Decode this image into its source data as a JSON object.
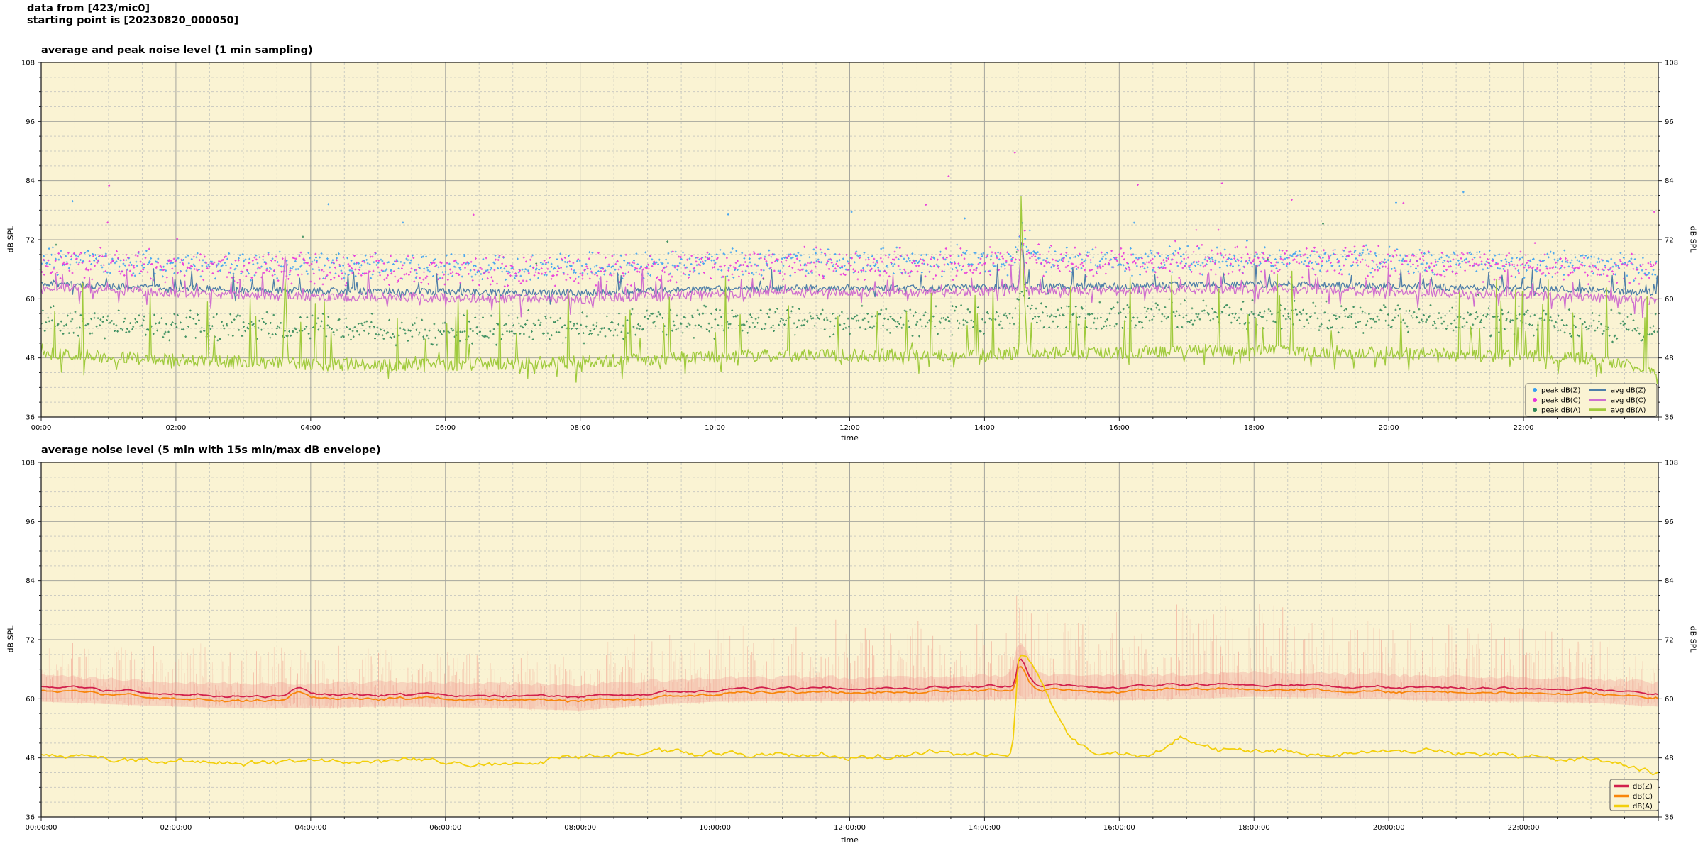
{
  "header": {
    "line1": "data from [423/mic0]",
    "line2": "starting point is [20230820_000050]"
  },
  "colors": {
    "figure_bg": "#ffffff",
    "plot_bg": "#faf3d3",
    "grid_major": "#a6a69e",
    "grid_minor": "#ccccc2",
    "spine": "#222222",
    "envelope": "#ef9384"
  },
  "chart_data": [
    {
      "type": "line+scatter",
      "title": "average and peak noise level (1 min sampling)",
      "xlabel": "time",
      "ylabel_left": "dB SPL",
      "ylabel_right": "dB SPL",
      "ylim": [
        36,
        108
      ],
      "yticks": [
        36,
        48,
        60,
        72,
        84,
        96,
        108
      ],
      "y_minor_step": 3,
      "x_hours": [
        0,
        24
      ],
      "x_major_step_h": 2,
      "x_minor_step_h": 0.5,
      "xtick_labels": [
        "00:00",
        "02:00",
        "04:00",
        "06:00",
        "08:00",
        "10:00",
        "12:00",
        "14:00",
        "16:00",
        "18:00",
        "20:00",
        "22:00"
      ],
      "grid": true,
      "legend_position": "lower right",
      "legend": [
        {
          "label": "peak dB(Z)",
          "marker": "dot",
          "color": "#369ff2"
        },
        {
          "label": "peak dB(C)",
          "marker": "dot",
          "color": "#e832dc"
        },
        {
          "label": "peak dB(A)",
          "marker": "dot",
          "color": "#2e8757"
        },
        {
          "label": "avg dB(Z)",
          "marker": "line",
          "color": "#4e7ea8"
        },
        {
          "label": "avg dB(C)",
          "marker": "line",
          "color": "#cf6ecf"
        },
        {
          "label": "avg dB(A)",
          "marker": "line",
          "color": "#9fca3c"
        }
      ],
      "anchor_hours": [
        0,
        1,
        2,
        3,
        4,
        5,
        6,
        7,
        8,
        9,
        10,
        11,
        12,
        13,
        14,
        15,
        16,
        17,
        18,
        19,
        20,
        21,
        22,
        23,
        24
      ],
      "series": [
        {
          "name": "avg dB(Z)",
          "color": "#4e7ea8",
          "width": 1.3,
          "mode": "spiky",
          "seed": 11,
          "points": 1440,
          "noise": 0.7,
          "spike_prob": 0.035,
          "spike_min": 1.2,
          "spike_max": 4.5,
          "dip_prob": 0.03,
          "dip_max": 2.0,
          "anchors": [
            63.2,
            62.6,
            62.2,
            61.8,
            61.6,
            61.5,
            61.4,
            61.3,
            61.2,
            61.6,
            62.0,
            62.1,
            62.2,
            62.2,
            62.4,
            62.5,
            62.6,
            62.8,
            63.0,
            62.8,
            62.6,
            62.3,
            62.1,
            61.8,
            61.3
          ],
          "events": [
            {
              "t": 14.55,
              "amp": 9.0,
              "rise": 0.02,
              "decay": 0.03
            }
          ]
        },
        {
          "name": "avg dB(C)",
          "color": "#cf6ecf",
          "width": 1.3,
          "mode": "spiky",
          "seed": 12,
          "points": 1440,
          "noise": 0.9,
          "spike_prob": 0.04,
          "spike_min": 1.5,
          "spike_max": 6.0,
          "dip_prob": 0.05,
          "dip_max": 3.0,
          "anchors": [
            62.4,
            61.8,
            61.2,
            60.7,
            60.4,
            60.3,
            60.2,
            60.1,
            59.9,
            60.5,
            61.0,
            61.2,
            61.3,
            61.3,
            61.5,
            61.6,
            61.6,
            61.8,
            62.0,
            61.8,
            61.4,
            61.0,
            60.8,
            60.3,
            59.6
          ],
          "events": [
            {
              "t": 14.55,
              "amp": 9.5,
              "rise": 0.02,
              "decay": 0.03
            },
            {
              "t": 3.62,
              "amp": 9.0,
              "rise": 0.015,
              "decay": 0.02
            }
          ]
        },
        {
          "name": "avg dB(A)",
          "color": "#9fca3c",
          "width": 1.3,
          "mode": "spiky",
          "seed": 13,
          "points": 1440,
          "noise": 1.3,
          "spike_prob": 0.05,
          "spike_min": 3.0,
          "spike_max": 16.0,
          "dip_prob": 0.06,
          "dip_max": 3.5,
          "anchors": [
            49.0,
            48.2,
            47.6,
            47.2,
            46.8,
            46.6,
            46.6,
            46.9,
            47.2,
            47.8,
            48.3,
            48.5,
            48.5,
            48.6,
            48.8,
            49.0,
            49.0,
            49.4,
            49.6,
            49.2,
            49.0,
            48.6,
            48.4,
            47.8,
            45.5
          ],
          "events": [
            {
              "t": 14.55,
              "amp": 22.0,
              "rise": 0.02,
              "decay": 0.04
            },
            {
              "t": 3.62,
              "amp": 16.0,
              "rise": 0.015,
              "decay": 0.02
            }
          ]
        }
      ],
      "scatter": [
        {
          "name": "peak dB(Z)",
          "color": "#369ff2",
          "seed": 21,
          "count": 1150,
          "spread": 3.2,
          "outlier_prob": 0.02,
          "outlier_extra": 14,
          "anchors": [
            68.0,
            67.5,
            67.0,
            66.8,
            66.6,
            66.5,
            66.5,
            66.4,
            66.3,
            66.8,
            67.2,
            67.3,
            67.4,
            67.4,
            67.6,
            67.8,
            67.8,
            68.0,
            68.2,
            68.0,
            67.8,
            67.5,
            67.3,
            67.0,
            66.5
          ],
          "events": [
            {
              "t": 14.55,
              "amp": 6.0,
              "rise": 0.05,
              "decay": 0.08
            }
          ]
        },
        {
          "name": "peak dB(C)",
          "color": "#e832dc",
          "seed": 22,
          "count": 1150,
          "spread": 3.8,
          "outlier_prob": 0.02,
          "outlier_extra": 20,
          "anchors": [
            67.5,
            67.0,
            66.5,
            66.2,
            66.0,
            65.9,
            65.8,
            65.7,
            65.6,
            66.2,
            66.7,
            66.9,
            67.0,
            67.0,
            67.2,
            67.4,
            67.4,
            67.6,
            67.8,
            67.6,
            67.3,
            67.0,
            66.8,
            66.4,
            65.8
          ],
          "events": [
            {
              "t": 14.55,
              "amp": 6.0,
              "rise": 0.05,
              "decay": 0.08
            }
          ]
        },
        {
          "name": "peak dB(A)",
          "color": "#2e8757",
          "seed": 23,
          "count": 1150,
          "spread": 3.5,
          "outlier_prob": 0.02,
          "outlier_extra": 22,
          "anchors": [
            56.0,
            55.2,
            54.6,
            54.2,
            53.8,
            53.6,
            53.6,
            53.9,
            54.2,
            54.8,
            55.3,
            55.5,
            55.5,
            55.6,
            55.8,
            56.0,
            56.0,
            56.4,
            56.6,
            56.2,
            56.0,
            55.6,
            55.4,
            54.8,
            53.6
          ],
          "events": [
            {
              "t": 14.55,
              "amp": 8.0,
              "rise": 0.05,
              "decay": 0.08
            }
          ]
        }
      ]
    },
    {
      "type": "line",
      "title": "average noise level (5 min with 15s min/max dB envelope)",
      "xlabel": "time",
      "ylabel_left": "dB SPL",
      "ylabel_right": "dB SPL",
      "ylim": [
        36,
        108
      ],
      "yticks": [
        36,
        48,
        60,
        72,
        84,
        96,
        108
      ],
      "y_minor_step": 3,
      "x_hours": [
        0,
        24
      ],
      "x_major_step_h": 2,
      "x_minor_step_h": 0.5,
      "xtick_labels": [
        "00:00:00",
        "02:00:00",
        "04:00:00",
        "06:00:00",
        "08:00:00",
        "10:00:00",
        "12:00:00",
        "14:00:00",
        "16:00:00",
        "18:00:00",
        "20:00:00",
        "22:00:00"
      ],
      "grid": true,
      "legend_position": "lower right",
      "legend": [
        {
          "label": "dB(Z)",
          "marker": "line",
          "color": "#d2204c"
        },
        {
          "label": "dB(C)",
          "marker": "line",
          "color": "#f8860b"
        },
        {
          "label": "dB(A)",
          "marker": "line",
          "color": "#f2cf0c"
        }
      ],
      "anchor_hours": [
        0,
        1,
        2,
        3,
        4,
        5,
        6,
        7,
        8,
        9,
        10,
        11,
        12,
        13,
        14,
        15,
        16,
        17,
        18,
        19,
        20,
        21,
        22,
        23,
        24
      ],
      "envelope": {
        "name": "15s min/max dB envelope",
        "color": "#ef9384",
        "seed": 41,
        "strokes": 1100,
        "center_anchors": [
          62.4,
          61.6,
          61.0,
          60.7,
          60.8,
          61.0,
          60.9,
          60.7,
          60.4,
          61.2,
          61.8,
          62.0,
          62.0,
          62.1,
          62.3,
          62.5,
          62.3,
          62.6,
          63.0,
          62.8,
          62.5,
          62.1,
          62.0,
          61.8,
          60.9
        ],
        "max_anchors": [
          70,
          69.5,
          69,
          69,
          69,
          69,
          68.5,
          68,
          69,
          72,
          74,
          74,
          74,
          74,
          75,
          76,
          76,
          80,
          79,
          76,
          75,
          74,
          73,
          72,
          70
        ],
        "min_anchors": [
          59,
          58.5,
          58,
          57.6,
          57.7,
          58,
          57.9,
          57.6,
          57.2,
          58.3,
          59,
          59.1,
          59.1,
          59.2,
          59.4,
          59.6,
          59.3,
          59.6,
          60,
          59.8,
          59.5,
          59.1,
          59,
          58.8,
          58
        ],
        "events": [
          {
            "t": 14.52,
            "amp": 7.0,
            "rise": 0.06,
            "decay": 0.12
          }
        ]
      },
      "series": [
        {
          "name": "dB(Z)",
          "color": "#d2204c",
          "width": 1.8,
          "mode": "smooth",
          "seed": 31,
          "points": 600,
          "step": 0.4,
          "damp": 0.9,
          "jitter": 0.12,
          "anchors": [
            62.4,
            61.6,
            61.0,
            60.7,
            60.8,
            61.0,
            60.9,
            60.7,
            60.4,
            61.2,
            61.8,
            62.0,
            62.0,
            62.1,
            62.3,
            62.5,
            62.3,
            62.6,
            63.0,
            62.8,
            62.5,
            62.1,
            62.0,
            61.8,
            60.9
          ],
          "events": [
            {
              "t": 14.52,
              "amp": 5.8,
              "rise": 0.04,
              "decay": 0.1
            },
            {
              "t": 3.8,
              "amp": 1.6,
              "rise": 0.1,
              "decay": 0.15
            }
          ]
        },
        {
          "name": "dB(C)",
          "color": "#f8860b",
          "width": 1.8,
          "mode": "smooth",
          "seed": 32,
          "points": 600,
          "step": 0.4,
          "damp": 0.9,
          "jitter": 0.2,
          "follow": "dB(Z)",
          "follow_scale": 0.95,
          "anchors": [
            61.6,
            60.8,
            60.1,
            59.8,
            60.0,
            60.2,
            60.1,
            59.9,
            59.5,
            60.3,
            61.0,
            61.2,
            61.2,
            61.3,
            61.5,
            61.6,
            61.4,
            61.7,
            62.1,
            61.9,
            61.6,
            61.2,
            61.1,
            60.9,
            60.1
          ],
          "events": [
            {
              "t": 14.52,
              "amp": 5.2,
              "rise": 0.04,
              "decay": 0.1
            },
            {
              "t": 3.8,
              "amp": 1.6,
              "rise": 0.1,
              "decay": 0.15
            }
          ]
        },
        {
          "name": "dB(A)",
          "color": "#f2cf0c",
          "width": 1.8,
          "mode": "smooth",
          "seed": 33,
          "points": 600,
          "step": 0.9,
          "damp": 0.88,
          "jitter": 0.3,
          "anchors": [
            48.6,
            47.6,
            47.1,
            47.0,
            47.4,
            47.3,
            46.6,
            47.0,
            47.5,
            48.4,
            48.7,
            48.7,
            48.5,
            48.5,
            48.2,
            48.9,
            48.5,
            49.0,
            49.5,
            49.1,
            48.9,
            48.5,
            48.7,
            47.9,
            44.5
          ],
          "events": [
            {
              "t": 14.52,
              "amp": 20.5,
              "rise": 0.05,
              "decay": 0.38
            },
            {
              "t": 16.9,
              "amp": 3.5,
              "rise": 0.15,
              "decay": 0.25
            }
          ]
        }
      ]
    }
  ]
}
